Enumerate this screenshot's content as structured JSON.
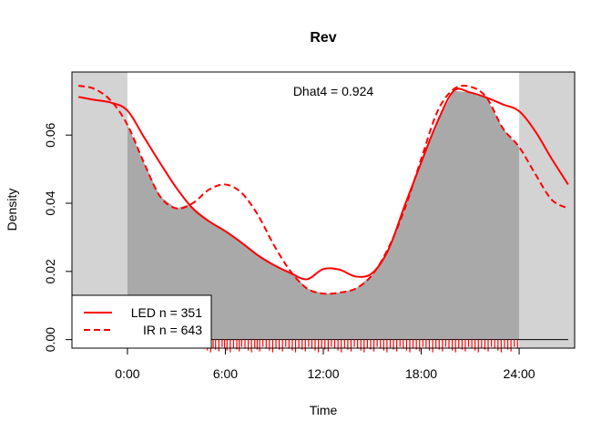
{
  "chart_data": {
    "type": "area",
    "title": "Rev",
    "xlabel": "Time",
    "ylabel": "Density",
    "xlim": [
      -3.4,
      27.4
    ],
    "ylim": [
      -0.0025,
      0.0785
    ],
    "xticks": [
      {
        "value": 0,
        "label": "0:00"
      },
      {
        "value": 6,
        "label": "6:00"
      },
      {
        "value": 12,
        "label": "12:00"
      },
      {
        "value": 18,
        "label": "18:00"
      },
      {
        "value": 24,
        "label": "24:00"
      }
    ],
    "yticks": [
      {
        "value": 0.0,
        "label": "0.00"
      },
      {
        "value": 0.02,
        "label": "0.02"
      },
      {
        "value": 0.04,
        "label": "0.04"
      },
      {
        "value": 0.06,
        "label": "0.06"
      }
    ],
    "shaded_regions": [
      {
        "from": -3.4,
        "to": 0,
        "color": "#d3d3d3"
      },
      {
        "from": 24,
        "to": 27.4,
        "color": "#d3d3d3"
      }
    ],
    "annotation": "Dhat4 = 0.924",
    "overlap_fill": "#a9a9a9",
    "legend": {
      "position": "bottom-left",
      "entries": [
        {
          "label": "LED n = 351",
          "style": "solid",
          "color": "#ff0000"
        },
        {
          "label": "IR n = 643",
          "style": "dashed",
          "color": "#ff0000"
        }
      ]
    },
    "series": [
      {
        "name": "LED n = 351",
        "style": "solid",
        "color": "#ff0000",
        "x": [
          -3,
          -2,
          -1,
          0,
          1,
          2,
          3,
          4,
          5,
          6,
          7,
          8,
          9,
          10,
          11,
          12,
          13,
          14,
          15,
          16,
          17,
          18,
          19,
          20,
          21,
          22,
          23,
          24,
          25,
          26,
          27
        ],
        "y": [
          0.0712,
          0.0703,
          0.0695,
          0.0672,
          0.0595,
          0.0518,
          0.0445,
          0.0385,
          0.0347,
          0.0318,
          0.0284,
          0.0247,
          0.0218,
          0.0195,
          0.0177,
          0.0207,
          0.0205,
          0.0185,
          0.0195,
          0.0265,
          0.0395,
          0.052,
          0.064,
          0.073,
          0.0725,
          0.071,
          0.069,
          0.067,
          0.061,
          0.053,
          0.0455
        ]
      },
      {
        "name": "IR n = 643",
        "style": "dashed",
        "color": "#ff0000",
        "x": [
          -3,
          -2,
          -1,
          0,
          1,
          2,
          3,
          4,
          5,
          6,
          7,
          8,
          9,
          10,
          11,
          12,
          13,
          14,
          15,
          16,
          17,
          18,
          19,
          20,
          21,
          22,
          23,
          24,
          25,
          26,
          27
        ],
        "y": [
          0.0745,
          0.0735,
          0.07,
          0.063,
          0.052,
          0.042,
          0.0385,
          0.04,
          0.044,
          0.0455,
          0.043,
          0.0365,
          0.0275,
          0.02,
          0.015,
          0.0135,
          0.0138,
          0.015,
          0.019,
          0.027,
          0.0385,
          0.053,
          0.067,
          0.0735,
          0.0742,
          0.071,
          0.062,
          0.0565,
          0.0485,
          0.041,
          0.0385
        ]
      }
    ],
    "rug": {
      "color": "#ff0000",
      "baseline": 0.0,
      "x": [
        4.5,
        4.7,
        4.9,
        5.1,
        5.25,
        5.4,
        5.6,
        5.8,
        5.95,
        6.1,
        6.3,
        6.5,
        6.7,
        6.85,
        7.0,
        7.2,
        7.4,
        7.6,
        7.8,
        7.95,
        8.1,
        8.3,
        8.5,
        8.7,
        8.9,
        9.1,
        9.3,
        9.5,
        9.7,
        9.9,
        10.1,
        10.3,
        10.5,
        10.7,
        10.9,
        11.1,
        11.3,
        11.5,
        11.7,
        11.9,
        12.1,
        12.3,
        12.5,
        12.7,
        12.9,
        13.1,
        13.3,
        13.5,
        13.7,
        13.9,
        14.1,
        14.3,
        14.5,
        14.7,
        14.9,
        15.1,
        15.3,
        15.5,
        15.7,
        15.9,
        16.1,
        16.3,
        16.5,
        16.7,
        16.9,
        17.1,
        17.3,
        17.5,
        17.7,
        17.9,
        18.1,
        18.3,
        18.5,
        18.7,
        18.9,
        19.1,
        19.3,
        19.5,
        19.7,
        19.9,
        20.1,
        20.3,
        20.5,
        20.7,
        20.9,
        21.1,
        21.3,
        21.5,
        21.7,
        21.9,
        22.1,
        22.3,
        22.5,
        22.7,
        22.9,
        23.1,
        23.3,
        23.5,
        23.7,
        23.9
      ]
    },
    "baseline_line": {
      "from": 0,
      "to": 27,
      "y": 0.0,
      "color": "#000000"
    }
  }
}
